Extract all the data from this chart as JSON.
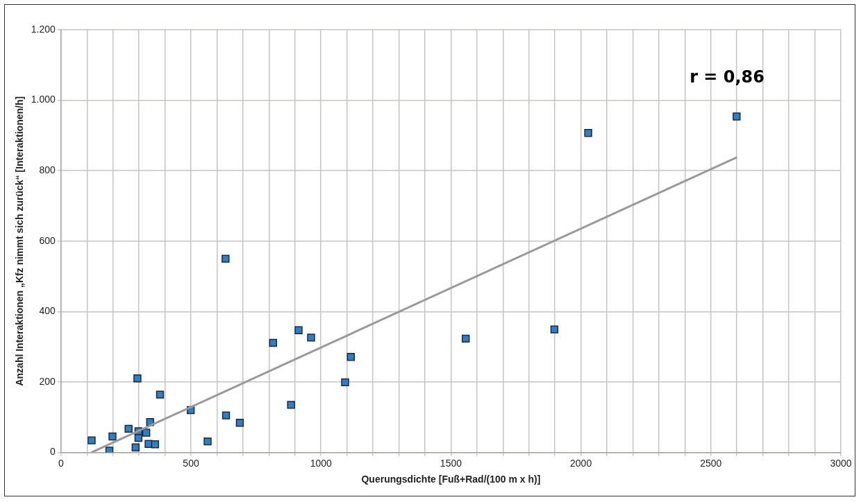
{
  "chart_data": {
    "type": "scatter",
    "xlabel": "Querungsdichte [Fuß+Rad/(100 m x h)]",
    "ylabel": "Anzahl Interaktionen „Kfz nimmt sich zurück“ [Interaktionen/h]",
    "annotations": [
      "r = 0,86"
    ],
    "marker": "square",
    "grid": true,
    "legend": false,
    "xlim": [
      0,
      3000
    ],
    "ylim": [
      0,
      1200
    ],
    "xticks": [
      0,
      {
        "value": 100,
        "label": null
      },
      {
        "value": 200,
        "label": null
      },
      {
        "value": 300,
        "label": null
      },
      {
        "value": 400,
        "label": null
      },
      500,
      {
        "value": 600,
        "label": null
      },
      {
        "value": 700,
        "label": null
      },
      {
        "value": 800,
        "label": null
      },
      {
        "value": 900,
        "label": null
      },
      1000,
      {
        "value": 1100,
        "label": null
      },
      {
        "value": 1200,
        "label": null
      },
      {
        "value": 1300,
        "label": null
      },
      {
        "value": 1400,
        "label": null
      },
      1500,
      {
        "value": 1600,
        "label": null
      },
      {
        "value": 1700,
        "label": null
      },
      {
        "value": 1800,
        "label": null
      },
      {
        "value": 1900,
        "label": null
      },
      2000,
      {
        "value": 2100,
        "label": null
      },
      {
        "value": 2200,
        "label": null
      },
      {
        "value": 2300,
        "label": null
      },
      {
        "value": 2400,
        "label": null
      },
      2500,
      {
        "value": 2600,
        "label": null
      },
      {
        "value": 2700,
        "label": null
      },
      {
        "value": 2800,
        "label": null
      },
      {
        "value": 2900,
        "label": null
      },
      3000
    ],
    "yticks": [
      0,
      200,
      400,
      600,
      800,
      {
        "value": 1000,
        "label": "1.000"
      },
      {
        "value": 1200,
        "label": "1.200"
      }
    ],
    "series": [
      {
        "color": "#2f7fc8",
        "x": [
          118,
          198,
          186,
          260,
          294,
          287,
          298,
          298,
          328,
          343,
          337,
          362,
          381,
          499,
          564,
          633,
          635,
          688,
          816,
          914,
          962,
          885,
          1093,
          1115,
          1557,
          1898,
          2028,
          2599
        ],
        "values": [
          34,
          45,
          5,
          67,
          210,
          14,
          60,
          41,
          56,
          86,
          24,
          23,
          164,
          120,
          31,
          550,
          105,
          84,
          311,
          347,
          326,
          135,
          199,
          271,
          323,
          349,
          907,
          954
        ]
      },
      {
        "type": "line",
        "color": "#999999",
        "marker": "none",
        "x": [
          118,
          2600
        ],
        "values": [
          0,
          838
        ]
      }
    ]
  }
}
